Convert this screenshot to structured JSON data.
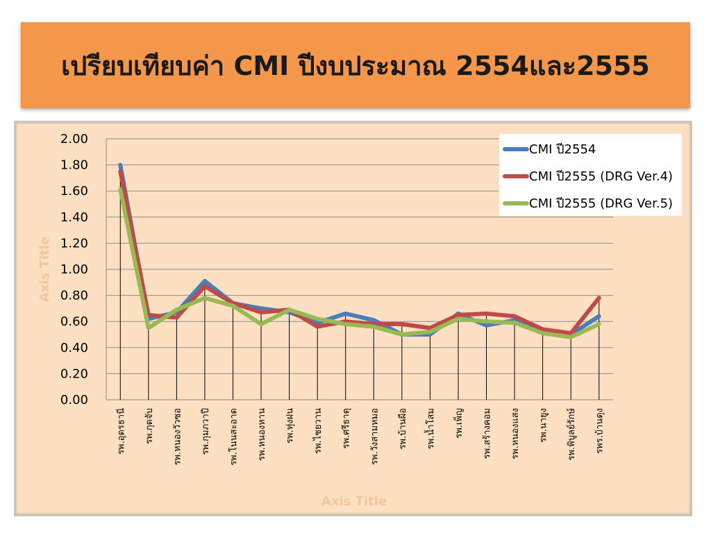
{
  "title": "เปรียบเทียบค่า CMI ปีงบประมาณ 2554และ2555",
  "chart_data": {
    "type": "line",
    "xlabel": "Axis Title",
    "ylabel": "Axis Title",
    "ylim": [
      0,
      2
    ],
    "yticks": [
      "0.00",
      "0.20",
      "0.40",
      "0.60",
      "0.80",
      "1.00",
      "1.20",
      "1.40",
      "1.60",
      "1.80",
      "2.00"
    ],
    "grid": true,
    "legend_position": "top-right",
    "categories": [
      "รพ.อุดรธานี",
      "รพ.กุดจับ",
      "รพ.หนองวัวซอ",
      "รพ.กุมภวาปี",
      "รพ.โนนสะอาด",
      "รพ.หนองหาน",
      "รพ.ทุ่งฝน",
      "รพ.ไชยวาน",
      "รพ.ศรีธาตุ",
      "รพ.วังสามหมอ",
      "รพ.บ้านผือ",
      "รพ.น้ำโสม",
      "รพ.เพ็ญ",
      "รพ.สร้างคอม",
      "รพ.หนองแสง",
      "รพ.นายูง",
      "รพ.พิบูลย์รักษ์",
      "รพร.บ้านดุง"
    ],
    "series": [
      {
        "name": "CMI  ปี2554",
        "color": "#4a7ebb",
        "values": [
          1.8,
          0.62,
          0.67,
          0.91,
          0.74,
          0.7,
          0.67,
          0.59,
          0.66,
          0.61,
          0.5,
          0.5,
          0.66,
          0.57,
          0.61,
          0.53,
          0.5,
          0.64
        ]
      },
      {
        "name": "CMI ปี2555 (DRG Ver.4)",
        "color": "#be4b48",
        "values": [
          1.75,
          0.65,
          0.63,
          0.87,
          0.74,
          0.67,
          0.69,
          0.56,
          0.6,
          0.58,
          0.58,
          0.55,
          0.65,
          0.66,
          0.64,
          0.54,
          0.51,
          0.78
        ]
      },
      {
        "name": "CMI ปี2555 (DRG Ver.5)",
        "color": "#98b954",
        "values": [
          1.61,
          0.55,
          0.69,
          0.78,
          0.72,
          0.58,
          0.69,
          0.62,
          0.58,
          0.56,
          0.5,
          0.52,
          0.62,
          0.6,
          0.59,
          0.51,
          0.48,
          0.58
        ]
      }
    ]
  }
}
